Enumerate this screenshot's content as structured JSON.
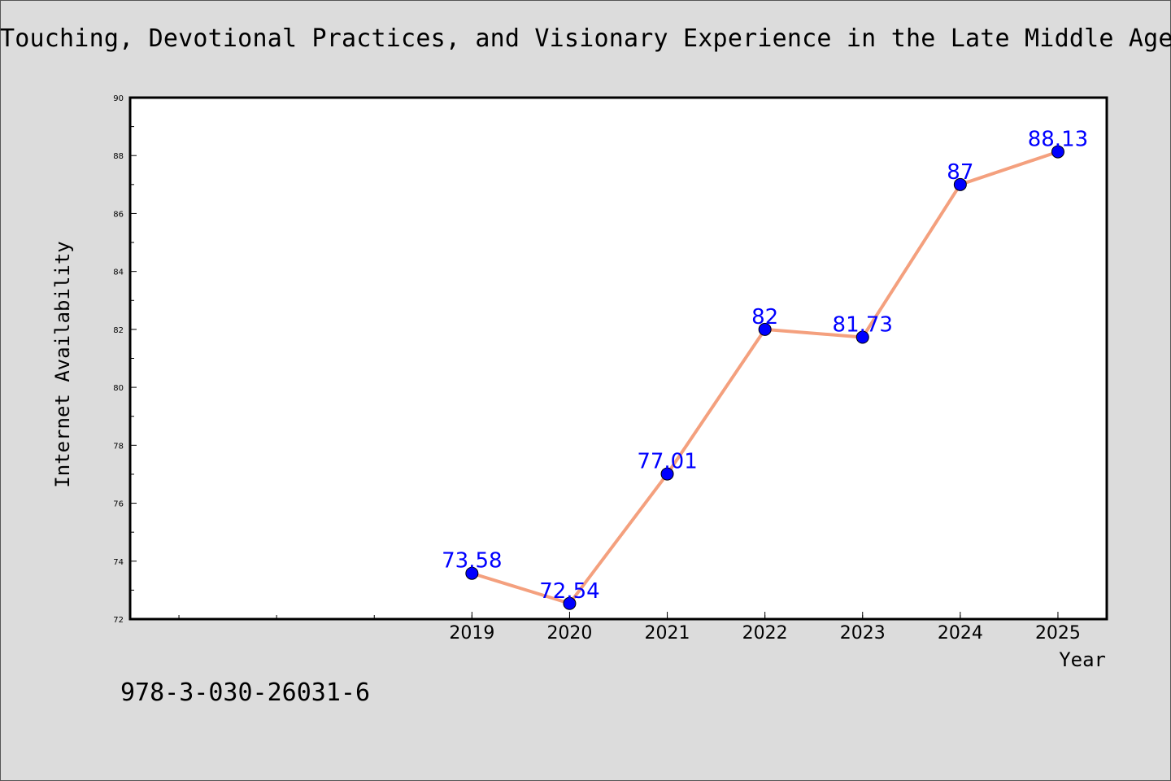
{
  "page": {
    "title": "Touching, Devotional Practices, and Visionary Experience in the Late Middle Ages",
    "isbn": "978-3-030-26031-6"
  },
  "chart_data": {
    "type": "line",
    "title": "Touching, Devotional Practices, and Visionary Experience in the Late Middle Ages",
    "xlabel": "Year",
    "ylabel": "Internet Availability",
    "x": [
      "2019",
      "2020",
      "2021",
      "2022",
      "2023",
      "2024",
      "2025"
    ],
    "x_positions": [
      2019,
      2020,
      2021,
      2022,
      2023,
      2024,
      2025
    ],
    "xlim": [
      2015.5,
      2025.5
    ],
    "y": [
      73.58,
      72.54,
      77.01,
      82,
      81.73,
      87,
      88.13
    ],
    "data_labels": [
      "73.58",
      "72.54",
      "77.01",
      "82",
      "81.73",
      "87",
      "88.13"
    ],
    "ylim": [
      72,
      90
    ],
    "yticks": [
      72,
      74,
      76,
      78,
      80,
      82,
      84,
      86,
      88,
      90
    ],
    "ytick_labels": [
      "72",
      "74",
      "76",
      "78",
      "80",
      "82",
      "84",
      "86",
      "88",
      "90"
    ],
    "grid": false,
    "colors": {
      "line": "#f4a07e",
      "marker": "#0000ff",
      "label": "#0000ff",
      "plot_bg": "#ffffff",
      "figure_bg": "#dcdcdc"
    }
  }
}
